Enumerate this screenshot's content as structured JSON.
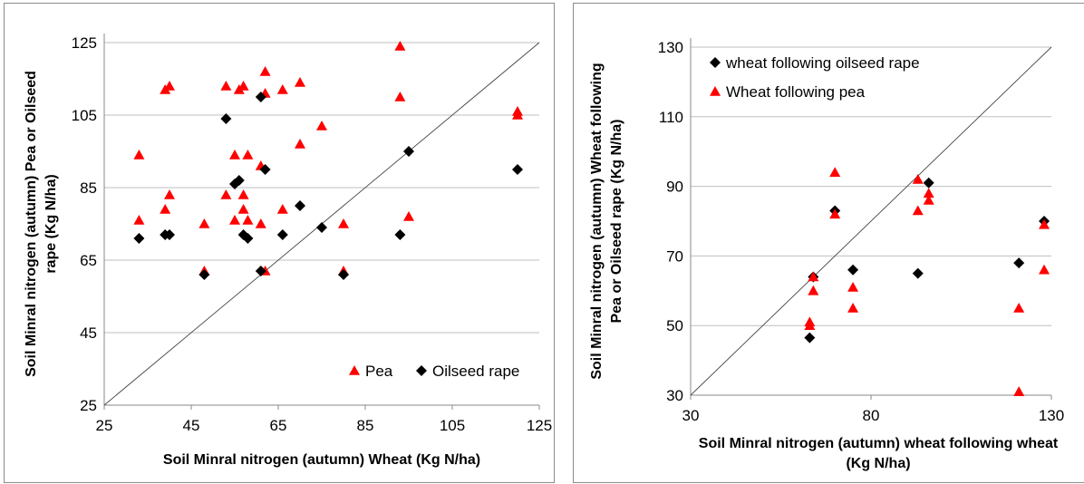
{
  "chart_data": [
    {
      "type": "scatter",
      "title": "",
      "xlabel": "Soil Minral nitrogen (autumn) Wheat (Kg N/ha)",
      "ylabel": [
        "Soil Minral nitrogen (autumn) Pea or Oilseed",
        "rape (Kg N/ha)"
      ],
      "xlim": [
        25,
        125
      ],
      "ylim": [
        25,
        125
      ],
      "xticks": [
        "25",
        "45",
        "65",
        "85",
        "105",
        "125"
      ],
      "yticks": [
        "25",
        "45",
        "65",
        "85",
        "105",
        "125"
      ],
      "grid": "horizontal",
      "legend": "bottom-right",
      "reference_line": "1:1",
      "series": [
        {
          "name": "Pea",
          "marker": "triangle",
          "color": "#ff0000",
          "points": [
            [
              33,
              94
            ],
            [
              33,
              76
            ],
            [
              39,
              112
            ],
            [
              40,
              113
            ],
            [
              39,
              79
            ],
            [
              40,
              83
            ],
            [
              48,
              75
            ],
            [
              48,
              62
            ],
            [
              53,
              113
            ],
            [
              53,
              83
            ],
            [
              55,
              94
            ],
            [
              55,
              76
            ],
            [
              56,
              112
            ],
            [
              57,
              113
            ],
            [
              57,
              83
            ],
            [
              57,
              79
            ],
            [
              58,
              94
            ],
            [
              58,
              76
            ],
            [
              61,
              91
            ],
            [
              61,
              75
            ],
            [
              62,
              117
            ],
            [
              62,
              111
            ],
            [
              62,
              62
            ],
            [
              66,
              112
            ],
            [
              66,
              79
            ],
            [
              70,
              114
            ],
            [
              70,
              97
            ],
            [
              75,
              102
            ],
            [
              80,
              75
            ],
            [
              80,
              62
            ],
            [
              93,
              124
            ],
            [
              93,
              110
            ],
            [
              95,
              77
            ],
            [
              120,
              106
            ],
            [
              120,
              105
            ]
          ]
        },
        {
          "name": "Oilseed rape",
          "marker": "diamond",
          "color": "#000000",
          "points": [
            [
              33,
              71
            ],
            [
              39,
              72
            ],
            [
              40,
              72
            ],
            [
              48,
              61
            ],
            [
              53,
              104
            ],
            [
              55,
              86
            ],
            [
              56,
              87
            ],
            [
              57,
              72
            ],
            [
              58,
              71
            ],
            [
              61,
              110
            ],
            [
              61,
              62
            ],
            [
              62,
              90
            ],
            [
              66,
              72
            ],
            [
              70,
              80
            ],
            [
              75,
              74
            ],
            [
              80,
              61
            ],
            [
              93,
              72
            ],
            [
              95,
              95
            ],
            [
              120,
              90
            ]
          ]
        }
      ]
    },
    {
      "type": "scatter",
      "title": "",
      "xlabel": [
        "Soil Minral nitrogen (autumn) wheat following wheat",
        "(Kg N/ha)"
      ],
      "ylabel": [
        "Soil Minral nitrogen (autumn) Wheat following",
        "Pea or Oilseed rape (Kg N/ha)"
      ],
      "xlim": [
        30,
        130
      ],
      "ylim": [
        30,
        130
      ],
      "xticks": [
        "30",
        "80",
        "130"
      ],
      "yticks": [
        "30",
        "50",
        "70",
        "90",
        "110",
        "130"
      ],
      "grid": "horizontal",
      "legend": "top-left",
      "reference_line": "1:1",
      "series": [
        {
          "name": "wheat following oilseed rape",
          "marker": "diamond",
          "color": "#000000",
          "points": [
            [
              63,
              46.5
            ],
            [
              64,
              64
            ],
            [
              70,
              83
            ],
            [
              75,
              66
            ],
            [
              93,
              65
            ],
            [
              96,
              91
            ],
            [
              121,
              68
            ],
            [
              128,
              80
            ]
          ]
        },
        {
          "name": "Wheat following pea",
          "marker": "triangle",
          "color": "#ff0000",
          "points": [
            [
              63,
              51
            ],
            [
              63,
              50
            ],
            [
              64,
              60
            ],
            [
              64,
              64
            ],
            [
              70,
              94
            ],
            [
              70,
              82
            ],
            [
              75,
              61
            ],
            [
              75,
              55
            ],
            [
              93,
              92
            ],
            [
              93,
              83
            ],
            [
              96,
              88
            ],
            [
              96,
              86
            ],
            [
              121,
              55
            ],
            [
              121,
              31
            ],
            [
              128,
              79
            ],
            [
              128,
              66
            ]
          ]
        }
      ]
    }
  ]
}
